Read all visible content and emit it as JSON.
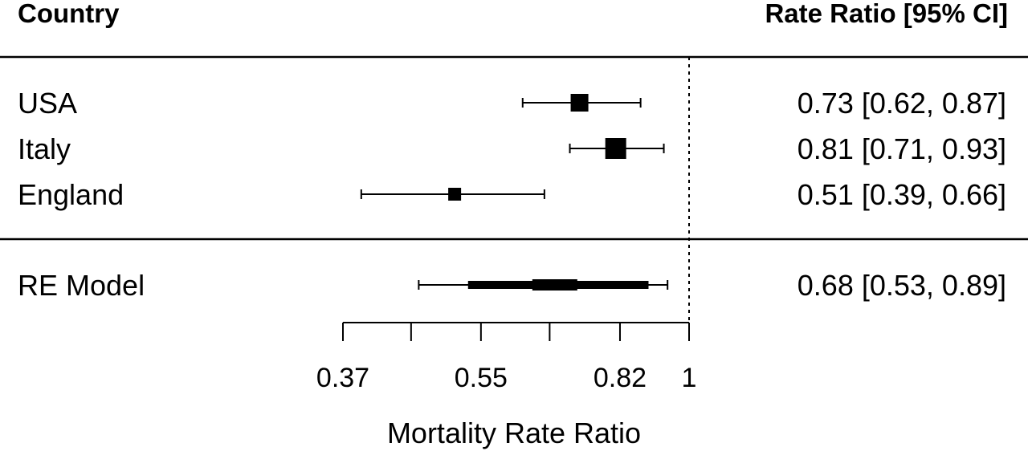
{
  "chart_data": {
    "type": "forest",
    "header": {
      "left": "Country",
      "right": "Rate Ratio [95% CI]"
    },
    "xlabel": "Mortality Rate Ratio",
    "x_scale": "log",
    "xlim": [
      0.37,
      1
    ],
    "ticks": [
      {
        "value": 0.37,
        "label": "0.37"
      },
      {
        "value": 0.45,
        "label": ""
      },
      {
        "value": 0.55,
        "label": "0.55"
      },
      {
        "value": 0.67,
        "label": ""
      },
      {
        "value": 0.82,
        "label": "0.82"
      },
      {
        "value": 1,
        "label": "1"
      }
    ],
    "reference_line": 1,
    "studies": [
      {
        "label": "USA",
        "estimate": 0.73,
        "lower": 0.62,
        "upper": 0.87,
        "weight": 0.35,
        "text": "0.73 [0.62, 0.87]"
      },
      {
        "label": "Italy",
        "estimate": 0.81,
        "lower": 0.71,
        "upper": 0.93,
        "weight": 0.45,
        "text": "0.81 [0.71, 0.93]"
      },
      {
        "label": "England",
        "estimate": 0.51,
        "lower": 0.39,
        "upper": 0.66,
        "weight": 0.2,
        "text": "0.51 [0.39, 0.66]"
      }
    ],
    "summary": {
      "label": "RE Model",
      "estimate": 0.68,
      "lower": 0.53,
      "upper": 0.89,
      "pi_lower": 0.46,
      "pi_upper": 0.94,
      "text": "0.68 [0.53, 0.89]"
    }
  }
}
